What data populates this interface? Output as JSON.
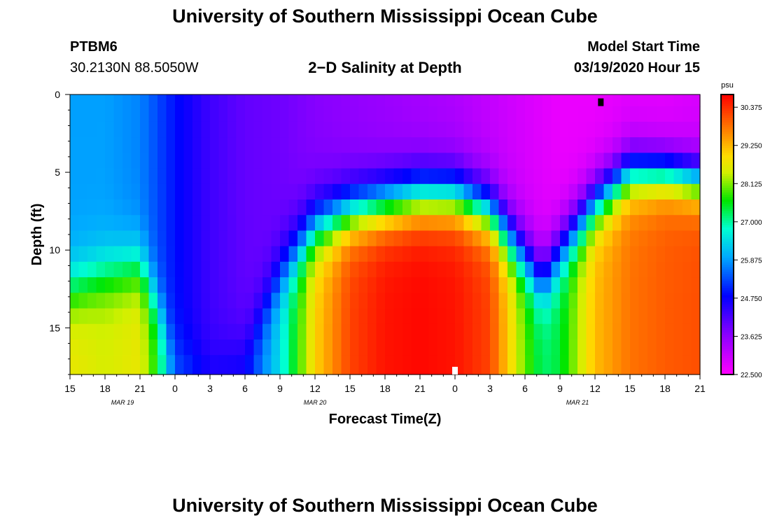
{
  "page": {
    "title_top": "University of Southern Mississippi Ocean Cube",
    "title_bottom": "University of Southern Mississippi Ocean Cube",
    "station_id": "PTBM6",
    "station_coords": "30.2130N 88.5050W",
    "model_start_label": "Model Start Time",
    "model_start_value": "03/19/2020 Hour 15"
  },
  "chart_data": {
    "type": "heatmap",
    "title": "2−D Salinity at Depth",
    "xlabel": "Forecast Time(Z)",
    "ylabel": "Depth (ft)",
    "x_unit": "hours since model start (03/19/2020 15Z)",
    "xlim": [
      0,
      54
    ],
    "ylim": [
      0,
      18
    ],
    "y_inverted": true,
    "x_ticks": [
      0,
      3,
      6,
      9,
      12,
      15,
      18,
      21,
      24,
      27,
      30,
      33,
      36,
      39,
      42,
      45,
      48,
      51,
      54
    ],
    "x_tick_labels": [
      "15",
      "18",
      "21",
      "0",
      "3",
      "6",
      "9",
      "12",
      "15",
      "18",
      "21",
      "0",
      "3",
      "6",
      "9",
      "12",
      "15",
      "18",
      "21"
    ],
    "date_labels": [
      {
        "text": "MAR 19",
        "x": 4.5
      },
      {
        "text": "MAR 20",
        "x": 21
      },
      {
        "text": "MAR 21",
        "x": 43.5
      }
    ],
    "y_ticks": [
      0,
      5,
      10,
      15
    ],
    "y_tick_labels": [
      "0",
      "5",
      "10",
      "15"
    ],
    "colorbar": {
      "unit": "psu",
      "min": 22.5,
      "max": 30.75,
      "tick_values": [
        30.375,
        29.25,
        28.125,
        27.0,
        25.875,
        24.75,
        23.625,
        22.5
      ],
      "tick_labels": [
        "30.375",
        "29.250",
        "28.125",
        "27.000",
        "25.875",
        "24.750",
        "23.625",
        "22.500"
      ]
    },
    "grid": false,
    "depth_levels": [
      0.25,
      1.25,
      2.25,
      3.25,
      4.25,
      5.25,
      6.25,
      7.25,
      8.25,
      9.25,
      10.25,
      11.25,
      12.25,
      13.25,
      14.25,
      15.25,
      16.25,
      17.25
    ],
    "time_points": [
      0,
      3,
      6,
      7.5,
      9,
      12,
      15,
      18,
      21,
      24,
      27,
      30,
      33,
      36,
      39,
      40.5,
      42,
      45,
      48,
      51,
      54
    ],
    "surface_value": [
      25.9,
      25.9,
      25.7,
      25.3,
      24.9,
      24.3,
      24.0,
      23.9,
      23.7,
      23.6,
      23.5,
      23.4,
      23.3,
      23.1,
      22.9,
      22.8,
      22.7,
      22.7,
      22.8,
      22.8,
      22.9
    ],
    "bottom_value": [
      28.7,
      28.5,
      28.7,
      27.6,
      25.5,
      24.9,
      25.0,
      26.5,
      29.0,
      30.2,
      30.6,
      30.7,
      30.6,
      30.2,
      28.0,
      27.2,
      27.4,
      29.2,
      29.8,
      30.0,
      30.1
    ],
    "transition_depth": [
      12.5,
      11.5,
      11.0,
      13.5,
      16.5,
      17.5,
      16.5,
      11.5,
      8.5,
      7.5,
      7.0,
      6.5,
      6.5,
      7.5,
      10.5,
      12.0,
      10.0,
      7.0,
      5.0,
      5.0,
      5.5
    ],
    "transition_sharpness": [
      2.6,
      2.6,
      2.6,
      2.6,
      2.6,
      2.6,
      2.8,
      2.8,
      2.6,
      2.4,
      2.4,
      2.4,
      2.4,
      2.4,
      2.6,
      2.6,
      2.6,
      2.4,
      2.2,
      2.0,
      2.0
    ],
    "markers": [
      {
        "x": 45.5,
        "depth": 0.25,
        "color": "#000000"
      },
      {
        "x": 33.0,
        "depth": 17.8,
        "color": "#ffffff"
      }
    ]
  }
}
